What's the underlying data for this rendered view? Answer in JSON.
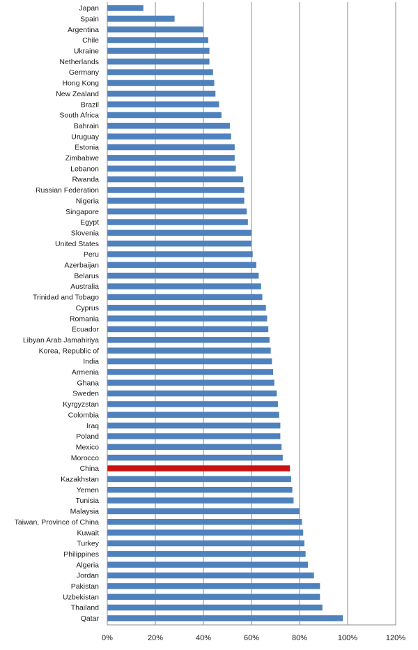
{
  "chart_data": {
    "type": "bar",
    "orientation": "horizontal",
    "title": "",
    "xlabel": "",
    "ylabel": "",
    "xlim": [
      0,
      1.2
    ],
    "x_ticks": [
      0,
      0.2,
      0.4,
      0.6,
      0.8,
      1.0,
      1.2
    ],
    "x_tick_labels": [
      "0%",
      "20%",
      "40%",
      "60%",
      "80%",
      "100%",
      "120%"
    ],
    "grid": "vertical",
    "colors": {
      "default": "#4F81BD",
      "highlight": "#CC1111"
    },
    "highlight_category": "China",
    "categories": [
      "Japan",
      "Spain",
      "Argentina",
      "Chile",
      "Ukraine",
      "Netherlands",
      "Germany",
      "Hong Kong",
      "New Zealand",
      "Brazil",
      "South Africa",
      "Bahrain",
      "Uruguay",
      "Estonia",
      "Zimbabwe",
      "Lebanon",
      "Rwanda",
      "Russian Federation",
      "Nigeria",
      "Singapore",
      "Egypt",
      "Slovenia",
      "United States",
      "Peru",
      "Azerbaijan",
      "Belarus",
      "Australia",
      "Trinidad and Tobago",
      "Cyprus",
      "Romania",
      "Ecuador",
      "Libyan Arab Jamahiriya",
      "Korea, Republic of",
      "India",
      "Armenia",
      "Ghana",
      "Sweden",
      "Kyrgyzstan",
      "Colombia",
      "Iraq",
      "Poland",
      "Mexico",
      "Morocco",
      "China",
      "Kazakhstan",
      "Yemen",
      "Tunisia",
      "Malaysia",
      "Taiwan, Province of China",
      "Kuwait",
      "Turkey",
      "Philippines",
      "Algeria",
      "Jordan",
      "Pakistan",
      "Uzbekistan",
      "Thailand",
      "Qatar"
    ],
    "values": [
      0.15,
      0.28,
      0.4,
      0.42,
      0.425,
      0.425,
      0.44,
      0.445,
      0.45,
      0.465,
      0.475,
      0.51,
      0.515,
      0.53,
      0.53,
      0.535,
      0.565,
      0.57,
      0.57,
      0.58,
      0.585,
      0.6,
      0.6,
      0.605,
      0.62,
      0.63,
      0.64,
      0.645,
      0.66,
      0.665,
      0.67,
      0.675,
      0.68,
      0.685,
      0.69,
      0.695,
      0.705,
      0.71,
      0.715,
      0.72,
      0.72,
      0.725,
      0.73,
      0.76,
      0.765,
      0.77,
      0.775,
      0.8,
      0.81,
      0.815,
      0.82,
      0.825,
      0.835,
      0.86,
      0.885,
      0.885,
      0.895,
      0.98
    ]
  }
}
